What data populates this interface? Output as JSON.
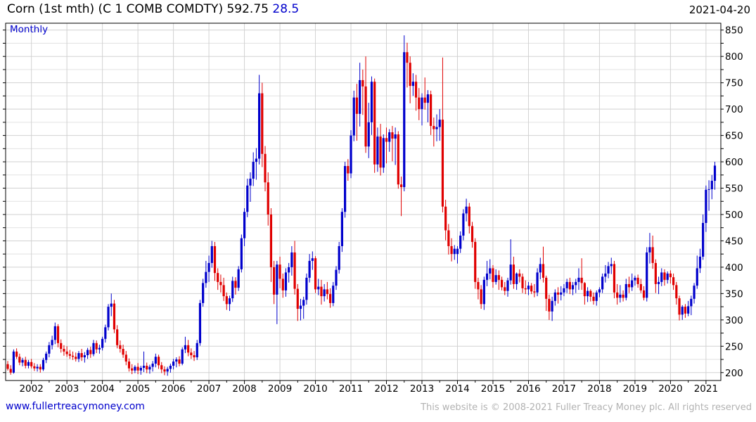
{
  "header": {
    "title": "Corn (1st mth) (C 1 COMB COMDTY)",
    "last_price": "592.75",
    "change": "28.5",
    "date": "2021-04-20"
  },
  "chart": {
    "interval_label": "Monthly"
  },
  "footer": {
    "website": "www.fullertreacymoney.com",
    "copyright": "This website is © 2008-2021 Fuller Treacy Money plc. All rights reserved"
  },
  "chart_data": {
    "type": "candlestick",
    "title": "Corn (1st mth) (C 1 COMB COMDTY)",
    "interval": "Monthly",
    "start": "2001-05",
    "end": "2021-04",
    "last_close": 592.75,
    "change": 28.5,
    "grid": true,
    "y_axis": {
      "side": "right",
      "min": 185,
      "max": 863,
      "minor_step": 25,
      "label_step": 50,
      "label_min": 200,
      "label_max": 850
    },
    "x_tick_years": [
      "2002",
      "2003",
      "2004",
      "2005",
      "2006",
      "2007",
      "2008",
      "2009",
      "2010",
      "2011",
      "2012",
      "2013",
      "2014",
      "2015",
      "2016",
      "2017",
      "2018",
      "2019",
      "2020",
      "2021"
    ],
    "colors": {
      "up": "#0000cc",
      "down": "#e00000",
      "grid_minor": "#e2e2e2",
      "grid_major": "#d2d2d2",
      "axis": "#000000"
    },
    "ohlc": [
      [
        216,
        222,
        204,
        207
      ],
      [
        207,
        214,
        196,
        200
      ],
      [
        200,
        244,
        198,
        240
      ],
      [
        240,
        246,
        226,
        230
      ],
      [
        230,
        236,
        214,
        219
      ],
      [
        219,
        228,
        212,
        224
      ],
      [
        224,
        230,
        208,
        213
      ],
      [
        213,
        224,
        208,
        220
      ],
      [
        220,
        226,
        208,
        212
      ],
      [
        212,
        218,
        203,
        208
      ],
      [
        208,
        216,
        202,
        211
      ],
      [
        211,
        216,
        200,
        206
      ],
      [
        206,
        228,
        203,
        224
      ],
      [
        224,
        240,
        218,
        236
      ],
      [
        236,
        258,
        229,
        252
      ],
      [
        252,
        270,
        244,
        262
      ],
      [
        262,
        295,
        254,
        288
      ],
      [
        288,
        292,
        248,
        256
      ],
      [
        256,
        263,
        238,
        245
      ],
      [
        245,
        252,
        232,
        240
      ],
      [
        240,
        250,
        230,
        235
      ],
      [
        235,
        243,
        226,
        232
      ],
      [
        232,
        240,
        224,
        230
      ],
      [
        230,
        238,
        221,
        226
      ],
      [
        226,
        241,
        220,
        237
      ],
      [
        237,
        245,
        222,
        229
      ],
      [
        229,
        239,
        219,
        233
      ],
      [
        233,
        247,
        226,
        243
      ],
      [
        243,
        249,
        228,
        235
      ],
      [
        235,
        262,
        231,
        256
      ],
      [
        256,
        261,
        237,
        244
      ],
      [
        244,
        253,
        236,
        247
      ],
      [
        247,
        268,
        242,
        264
      ],
      [
        264,
        291,
        257,
        286
      ],
      [
        286,
        330,
        280,
        325
      ],
      [
        325,
        350,
        307,
        331
      ],
      [
        331,
        338,
        275,
        282
      ],
      [
        282,
        290,
        246,
        252
      ],
      [
        252,
        261,
        238,
        245
      ],
      [
        245,
        253,
        228,
        234
      ],
      [
        234,
        241,
        214,
        221
      ],
      [
        221,
        227,
        202,
        208
      ],
      [
        208,
        216,
        197,
        204
      ],
      [
        204,
        214,
        199,
        211
      ],
      [
        211,
        218,
        197,
        204
      ],
      [
        204,
        213,
        196,
        209
      ],
      [
        209,
        240,
        201,
        213
      ],
      [
        213,
        219,
        199,
        206
      ],
      [
        206,
        215,
        198,
        211
      ],
      [
        211,
        222,
        202,
        217
      ],
      [
        217,
        236,
        210,
        230
      ],
      [
        230,
        234,
        207,
        214
      ],
      [
        214,
        220,
        199,
        206
      ],
      [
        206,
        212,
        195,
        202
      ],
      [
        202,
        211,
        194,
        207
      ],
      [
        207,
        217,
        200,
        213
      ],
      [
        213,
        226,
        206,
        221
      ],
      [
        221,
        229,
        210,
        225
      ],
      [
        225,
        231,
        212,
        217
      ],
      [
        217,
        248,
        214,
        244
      ],
      [
        244,
        268,
        237,
        252
      ],
      [
        252,
        262,
        231,
        238
      ],
      [
        238,
        246,
        226,
        233
      ],
      [
        233,
        241,
        222,
        229
      ],
      [
        229,
        262,
        224,
        256
      ],
      [
        256,
        338,
        251,
        332
      ],
      [
        332,
        378,
        325,
        370
      ],
      [
        370,
        412,
        361,
        391
      ],
      [
        391,
        422,
        372,
        408
      ],
      [
        408,
        450,
        399,
        440
      ],
      [
        440,
        448,
        374,
        389
      ],
      [
        389,
        398,
        357,
        372
      ],
      [
        372,
        386,
        352,
        366
      ],
      [
        366,
        380,
        336,
        345
      ],
      [
        345,
        352,
        319,
        330
      ],
      [
        330,
        346,
        317,
        341
      ],
      [
        341,
        382,
        334,
        374
      ],
      [
        374,
        381,
        348,
        361
      ],
      [
        361,
        402,
        355,
        396
      ],
      [
        396,
        462,
        390,
        455
      ],
      [
        455,
        512,
        440,
        505
      ],
      [
        505,
        568,
        495,
        555
      ],
      [
        555,
        580,
        524,
        568
      ],
      [
        568,
        618,
        554,
        600
      ],
      [
        600,
        626,
        566,
        606
      ],
      [
        606,
        765,
        595,
        730
      ],
      [
        730,
        750,
        590,
        615
      ],
      [
        615,
        630,
        544,
        561
      ],
      [
        561,
        580,
        479,
        500
      ],
      [
        500,
        512,
        372,
        400
      ],
      [
        400,
        412,
        330,
        348
      ],
      [
        348,
        412,
        292,
        405
      ],
      [
        405,
        420,
        360,
        378
      ],
      [
        378,
        388,
        342,
        356
      ],
      [
        356,
        398,
        344,
        390
      ],
      [
        390,
        408,
        371,
        400
      ],
      [
        400,
        440,
        384,
        428
      ],
      [
        428,
        450,
        348,
        359
      ],
      [
        359,
        368,
        298,
        321
      ],
      [
        321,
        340,
        299,
        327
      ],
      [
        327,
        344,
        302,
        338
      ],
      [
        338,
        388,
        329,
        380
      ],
      [
        380,
        425,
        371,
        412
      ],
      [
        412,
        430,
        395,
        417
      ],
      [
        417,
        421,
        351,
        358
      ],
      [
        358,
        378,
        347,
        363
      ],
      [
        363,
        376,
        329,
        345
      ],
      [
        345,
        368,
        335,
        358
      ],
      [
        358,
        372,
        339,
        349
      ],
      [
        349,
        360,
        323,
        332
      ],
      [
        332,
        372,
        326,
        365
      ],
      [
        365,
        402,
        357,
        395
      ],
      [
        395,
        448,
        388,
        440
      ],
      [
        440,
        512,
        429,
        505
      ],
      [
        505,
        600,
        494,
        592
      ],
      [
        592,
        605,
        564,
        578
      ],
      [
        578,
        660,
        569,
        650
      ],
      [
        650,
        735,
        639,
        722
      ],
      [
        722,
        748,
        640,
        691
      ],
      [
        691,
        788,
        667,
        755
      ],
      [
        755,
        775,
        689,
        743
      ],
      [
        743,
        800,
        617,
        629
      ],
      [
        629,
        712,
        607,
        675
      ],
      [
        675,
        762,
        651,
        752
      ],
      [
        752,
        758,
        579,
        595
      ],
      [
        595,
        665,
        581,
        648
      ],
      [
        648,
        672,
        574,
        589
      ],
      [
        589,
        652,
        579,
        645
      ],
      [
        645,
        665,
        597,
        638
      ],
      [
        638,
        662,
        619,
        656
      ],
      [
        656,
        668,
        601,
        644
      ],
      [
        644,
        665,
        594,
        652
      ],
      [
        652,
        658,
        549,
        557
      ],
      [
        557,
        572,
        497,
        552
      ],
      [
        552,
        840,
        544,
        808
      ],
      [
        808,
        826,
        741,
        788
      ],
      [
        788,
        800,
        711,
        744
      ],
      [
        744,
        768,
        725,
        752
      ],
      [
        752,
        765,
        697,
        722
      ],
      [
        722,
        740,
        679,
        700
      ],
      [
        700,
        730,
        669,
        722
      ],
      [
        722,
        760,
        699,
        712
      ],
      [
        712,
        736,
        675,
        728
      ],
      [
        728,
        735,
        651,
        668
      ],
      [
        668,
        684,
        629,
        662
      ],
      [
        662,
        690,
        639,
        666
      ],
      [
        666,
        700,
        640,
        680
      ],
      [
        680,
        798,
        504,
        515
      ],
      [
        515,
        528,
        451,
        470
      ],
      [
        470,
        482,
        424,
        440
      ],
      [
        440,
        455,
        411,
        425
      ],
      [
        425,
        442,
        414,
        435
      ],
      [
        425,
        440,
        407,
        435
      ],
      [
        435,
        468,
        427,
        460
      ],
      [
        460,
        510,
        451,
        502
      ],
      [
        502,
        530,
        487,
        515
      ],
      [
        515,
        522,
        464,
        478
      ],
      [
        478,
        486,
        437,
        448
      ],
      [
        448,
        455,
        359,
        372
      ],
      [
        372,
        380,
        339,
        358
      ],
      [
        358,
        366,
        321,
        330
      ],
      [
        330,
        382,
        319,
        376
      ],
      [
        376,
        412,
        364,
        388
      ],
      [
        388,
        415,
        377,
        398
      ],
      [
        398,
        404,
        361,
        372
      ],
      [
        372,
        396,
        367,
        385
      ],
      [
        385,
        394,
        357,
        376
      ],
      [
        376,
        382,
        356,
        362
      ],
      [
        362,
        372,
        347,
        355
      ],
      [
        355,
        380,
        344,
        375
      ],
      [
        375,
        453,
        367,
        405
      ],
      [
        405,
        420,
        359,
        368
      ],
      [
        368,
        390,
        357,
        388
      ],
      [
        388,
        396,
        371,
        382
      ],
      [
        382,
        388,
        351,
        360
      ],
      [
        360,
        375,
        349,
        358
      ],
      [
        358,
        372,
        347,
        365
      ],
      [
        365,
        370,
        349,
        354
      ],
      [
        354,
        368,
        343,
        352
      ],
      [
        352,
        398,
        345,
        390
      ],
      [
        390,
        418,
        377,
        406
      ],
      [
        406,
        439,
        371,
        380
      ],
      [
        380,
        384,
        317,
        340
      ],
      [
        340,
        348,
        300,
        316
      ],
      [
        316,
        344,
        298,
        336
      ],
      [
        336,
        358,
        327,
        352
      ],
      [
        352,
        362,
        331,
        348
      ],
      [
        348,
        364,
        337,
        352
      ],
      [
        352,
        368,
        345,
        360
      ],
      [
        360,
        378,
        351,
        372
      ],
      [
        372,
        380,
        349,
        358
      ],
      [
        358,
        372,
        347,
        366
      ],
      [
        366,
        378,
        351,
        372
      ],
      [
        372,
        398,
        357,
        380
      ],
      [
        380,
        417,
        357,
        370
      ],
      [
        370,
        372,
        329,
        345
      ],
      [
        345,
        362,
        334,
        355
      ],
      [
        355,
        358,
        335,
        344
      ],
      [
        344,
        352,
        329,
        336
      ],
      [
        336,
        356,
        327,
        352
      ],
      [
        352,
        362,
        343,
        358
      ],
      [
        358,
        388,
        351,
        382
      ],
      [
        382,
        404,
        371,
        388
      ],
      [
        388,
        410,
        379,
        402
      ],
      [
        402,
        418,
        387,
        406
      ],
      [
        406,
        412,
        341,
        352
      ],
      [
        352,
        368,
        329,
        342
      ],
      [
        342,
        366,
        333,
        348
      ],
      [
        348,
        356,
        335,
        342
      ],
      [
        342,
        378,
        337,
        368
      ],
      [
        368,
        382,
        351,
        362
      ],
      [
        362,
        388,
        355,
        375
      ],
      [
        375,
        384,
        365,
        380
      ],
      [
        380,
        386,
        361,
        368
      ],
      [
        368,
        378,
        351,
        356
      ],
      [
        356,
        364,
        337,
        342
      ],
      [
        342,
        438,
        335,
        428
      ],
      [
        428,
        465,
        407,
        438
      ],
      [
        438,
        460,
        397,
        408
      ],
      [
        408,
        415,
        351,
        368
      ],
      [
        368,
        382,
        349,
        372
      ],
      [
        372,
        398,
        364,
        390
      ],
      [
        390,
        396,
        365,
        376
      ],
      [
        376,
        392,
        369,
        388
      ],
      [
        388,
        394,
        369,
        381
      ],
      [
        381,
        388,
        357,
        366
      ],
      [
        366,
        372,
        329,
        341
      ],
      [
        341,
        346,
        299,
        310
      ],
      [
        310,
        328,
        300,
        325
      ],
      [
        325,
        330,
        304,
        312
      ],
      [
        312,
        336,
        307,
        326
      ],
      [
        326,
        346,
        309,
        340
      ],
      [
        340,
        370,
        331,
        365
      ],
      [
        365,
        422,
        359,
        398
      ],
      [
        398,
        435,
        389,
        420
      ],
      [
        420,
        500,
        414,
        484
      ],
      [
        484,
        555,
        467,
        547
      ],
      [
        547,
        565,
        507,
        548
      ],
      [
        548,
        575,
        529,
        564
      ],
      [
        564,
        600,
        547,
        592.75
      ]
    ]
  }
}
